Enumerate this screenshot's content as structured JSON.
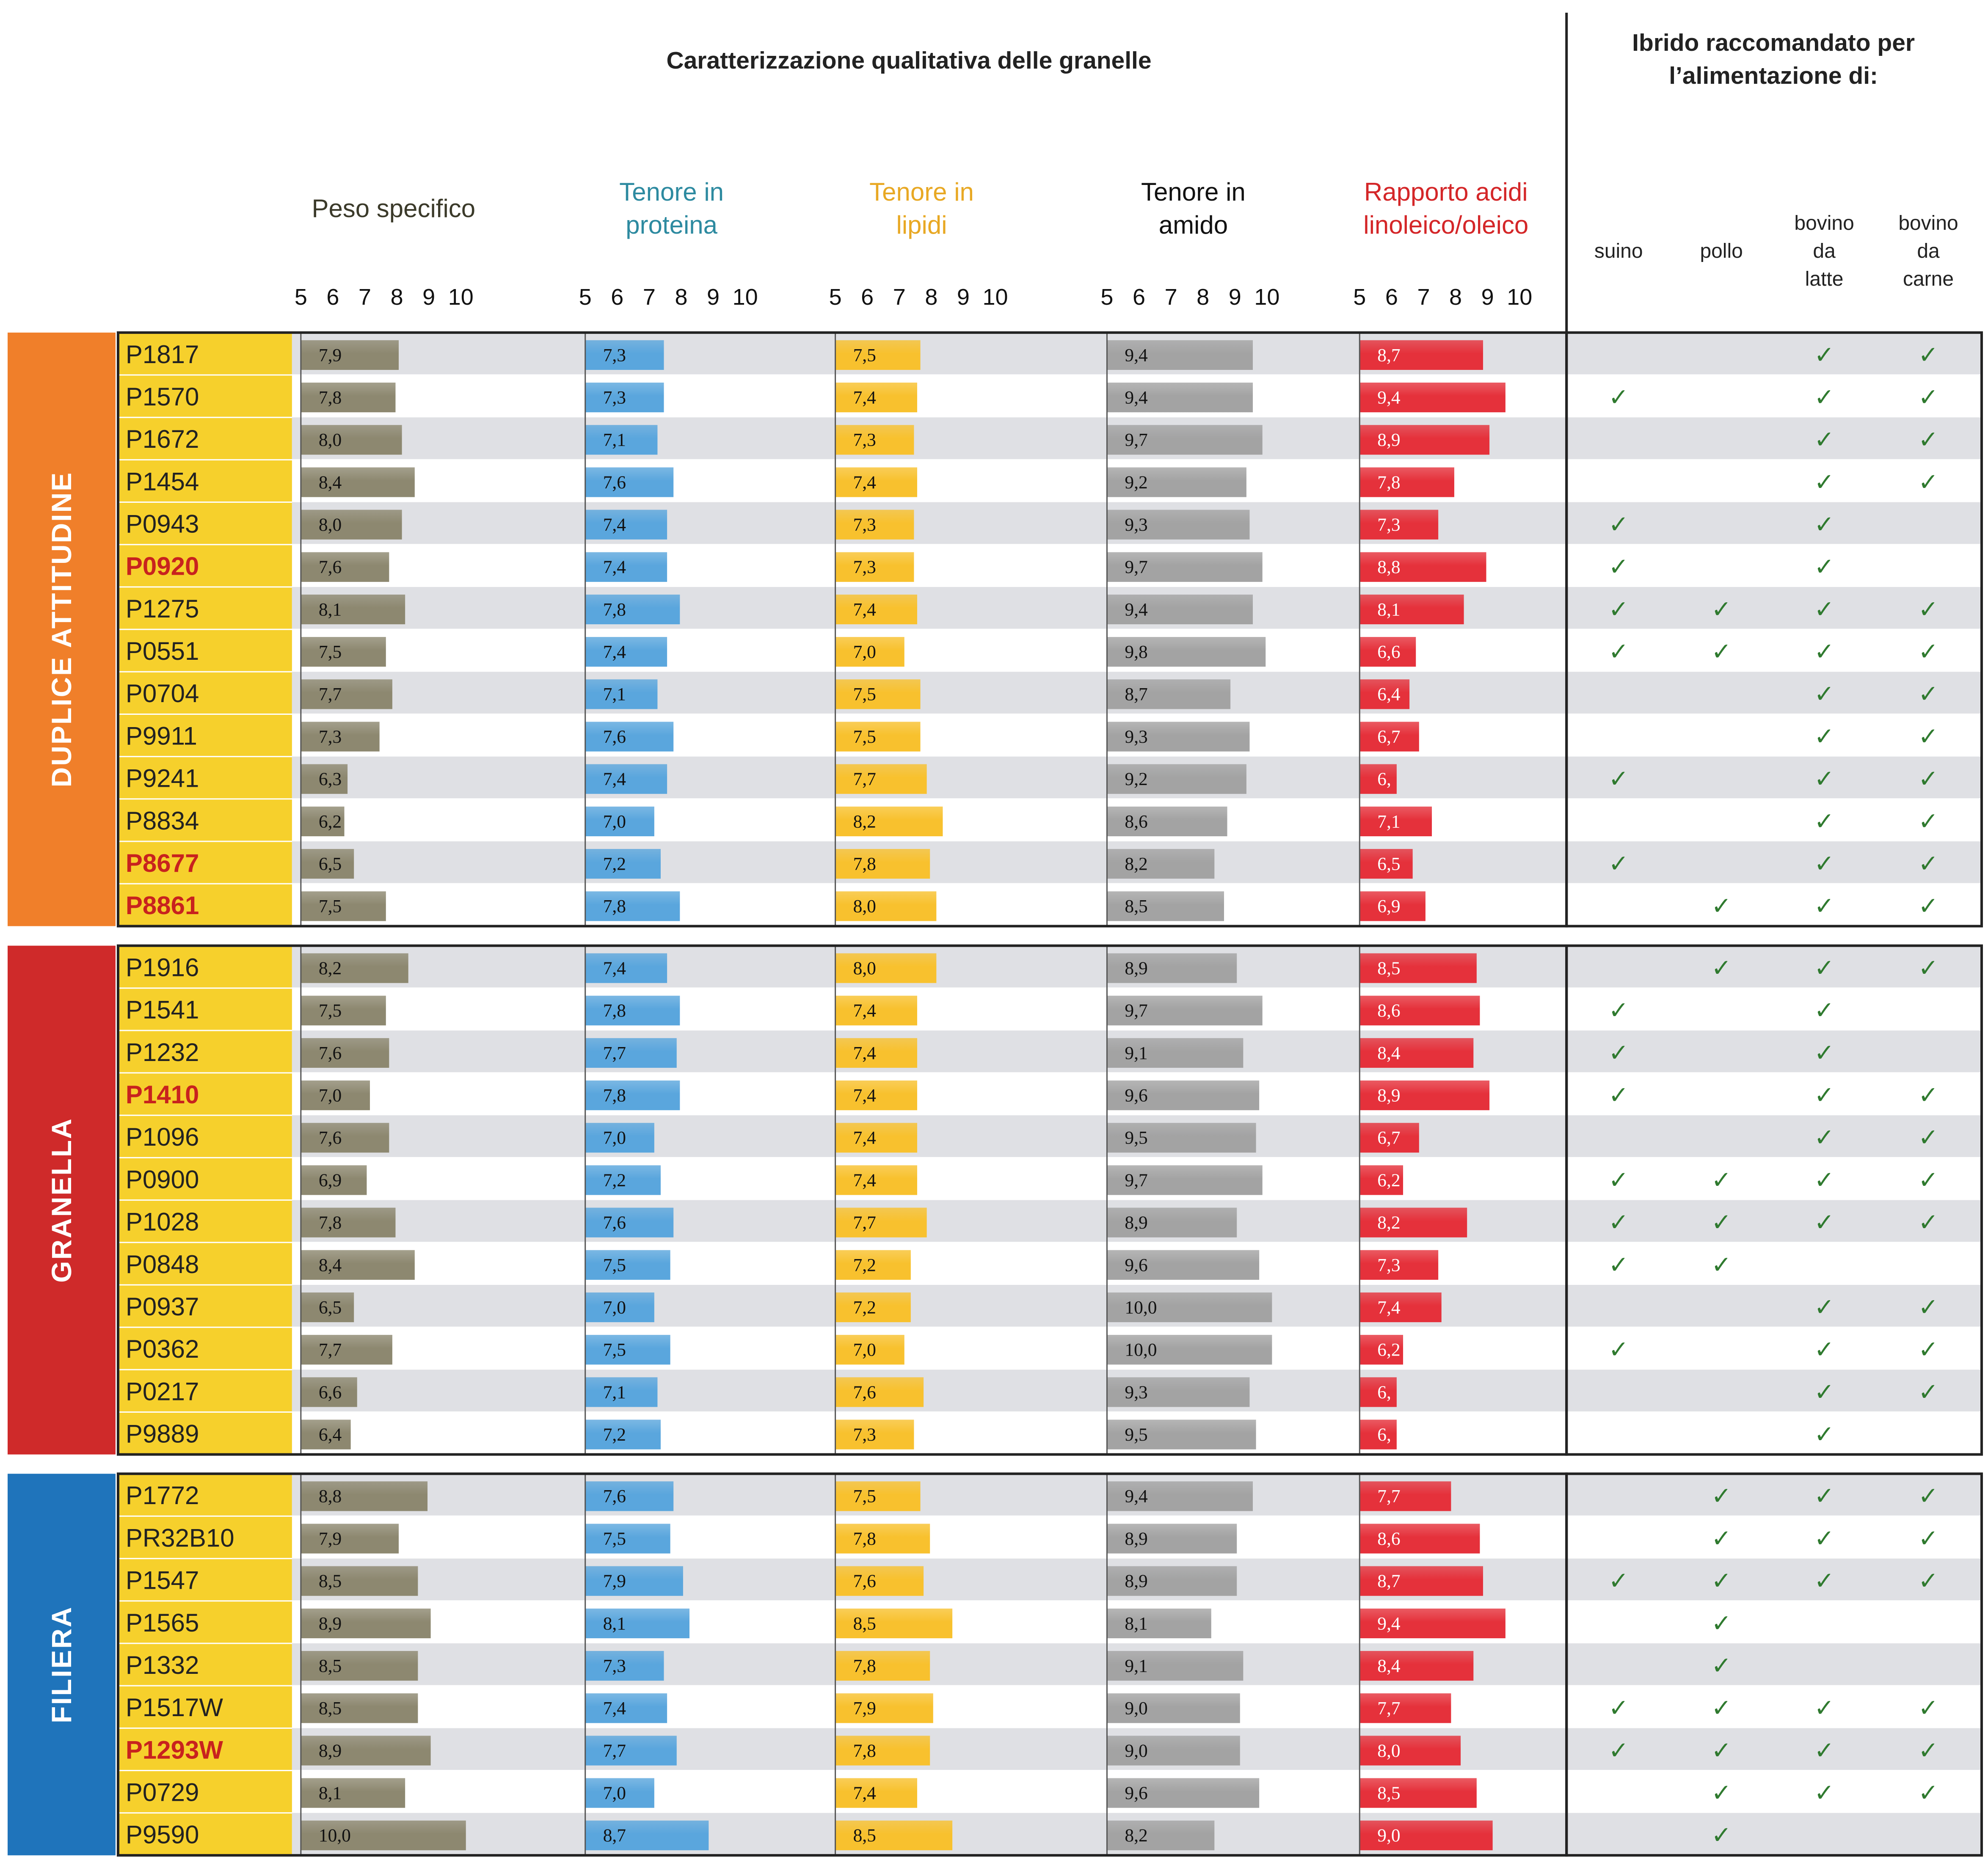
{
  "colors": {
    "peso": "#8d8870",
    "proteina": "#5aa6dd",
    "lipidi": "#f8c12e",
    "amido": "#a3a3a3",
    "rapporto": "#e5313b",
    "peso_label": "#3b3a2a",
    "proteina_label": "#2d8aa0",
    "lipidi_label": "#e8a823",
    "amido_label": "#111111",
    "rapporto_label": "#d42628",
    "name_col_bg": "#f6d02c",
    "highlight_name": "#c8221e",
    "check": "#2f7a2f",
    "stripe": "#dfe0e4"
  },
  "header": {
    "left_title": "Caratterizzazione qualitativa delle granelle",
    "right_title_line1": "Ibrido raccomandato per",
    "right_title_line2": "l’alimentazione di:"
  },
  "metrics": [
    {
      "key": "peso",
      "line1": "Peso specifico",
      "line2": ""
    },
    {
      "key": "proteina",
      "line1": "Tenore in",
      "line2": "proteina"
    },
    {
      "key": "lipidi",
      "line1": "Tenore in",
      "line2": "lipidi"
    },
    {
      "key": "amido",
      "line1": "Tenore in",
      "line2": "amido"
    },
    {
      "key": "rapporto",
      "line1": "Rapporto acidi",
      "line2": "linoleico/oleico"
    }
  ],
  "uses": [
    {
      "key": "suino",
      "lines": [
        "suino"
      ]
    },
    {
      "key": "pollo",
      "lines": [
        "pollo"
      ]
    },
    {
      "key": "latte",
      "lines": [
        "bovino",
        "da",
        "latte"
      ]
    },
    {
      "key": "carne",
      "lines": [
        "bovino",
        "da",
        "carne"
      ]
    }
  ],
  "check_symbol": "✓",
  "chart_data": {
    "type": "bar",
    "orientation": "horizontal",
    "xlim": [
      5,
      10
    ],
    "ticks": [
      "5",
      "6",
      "7",
      "8",
      "9",
      "10"
    ],
    "series_names": [
      "Peso specifico",
      "Tenore in proteina",
      "Tenore in lipidi",
      "Tenore in amido",
      "Rapporto acidi linoleico/oleico"
    ],
    "groups": [
      {
        "label": "DUPLICE ATTITUDINE",
        "color": "#f07f2a",
        "rows": [
          {
            "name": "P1817",
            "hl": false,
            "v": [
              7.9,
              7.3,
              7.5,
              9.4,
              8.7
            ],
            "lbl": [
              "7,9",
              "7,3",
              "7,5",
              "9,4",
              "8,7"
            ],
            "u": [
              false,
              false,
              true,
              true
            ]
          },
          {
            "name": "P1570",
            "hl": false,
            "v": [
              7.8,
              7.3,
              7.4,
              9.4,
              9.4
            ],
            "lbl": [
              "7,8",
              "7,3",
              "7,4",
              "9,4",
              "9,4"
            ],
            "u": [
              true,
              false,
              true,
              true
            ]
          },
          {
            "name": "P1672",
            "hl": false,
            "v": [
              8.0,
              7.1,
              7.3,
              9.7,
              8.9
            ],
            "lbl": [
              "8,0",
              "7,1",
              "7,3",
              "9,7",
              "8,9"
            ],
            "u": [
              false,
              false,
              true,
              true
            ]
          },
          {
            "name": "P1454",
            "hl": false,
            "v": [
              8.4,
              7.6,
              7.4,
              9.2,
              7.8
            ],
            "lbl": [
              "8,4",
              "7,6",
              "7,4",
              "9,2",
              "7,8"
            ],
            "u": [
              false,
              false,
              true,
              true
            ]
          },
          {
            "name": "P0943",
            "hl": false,
            "v": [
              8.0,
              7.4,
              7.3,
              9.3,
              7.3
            ],
            "lbl": [
              "8,0",
              "7,4",
              "7,3",
              "9,3",
              "7,3"
            ],
            "u": [
              true,
              false,
              true,
              false
            ]
          },
          {
            "name": "P0920",
            "hl": true,
            "v": [
              7.6,
              7.4,
              7.3,
              9.7,
              8.8
            ],
            "lbl": [
              "7,6",
              "7,4",
              "7,3",
              "9,7",
              "8,8"
            ],
            "u": [
              true,
              false,
              true,
              false
            ]
          },
          {
            "name": "P1275",
            "hl": false,
            "v": [
              8.1,
              7.8,
              7.4,
              9.4,
              8.1
            ],
            "lbl": [
              "8,1",
              "7,8",
              "7,4",
              "9,4",
              "8,1"
            ],
            "u": [
              true,
              true,
              true,
              true
            ]
          },
          {
            "name": "P0551",
            "hl": false,
            "v": [
              7.5,
              7.4,
              7.0,
              9.8,
              6.6
            ],
            "lbl": [
              "7,5",
              "7,4",
              "7,0",
              "9,8",
              "6,6"
            ],
            "u": [
              true,
              true,
              true,
              true
            ]
          },
          {
            "name": "P0704",
            "hl": false,
            "v": [
              7.7,
              7.1,
              7.5,
              8.7,
              6.4
            ],
            "lbl": [
              "7,7",
              "7,1",
              "7,5",
              "8,7",
              "6,4"
            ],
            "u": [
              false,
              false,
              true,
              true
            ]
          },
          {
            "name": "P9911",
            "hl": false,
            "v": [
              7.3,
              7.6,
              7.5,
              9.3,
              6.7
            ],
            "lbl": [
              "7,3",
              "7,6",
              "7,5",
              "9,3",
              "6,7"
            ],
            "u": [
              false,
              false,
              true,
              true
            ]
          },
          {
            "name": "P9241",
            "hl": false,
            "v": [
              6.3,
              7.4,
              7.7,
              9.2,
              6.0
            ],
            "lbl": [
              "6,3",
              "7,4",
              "7,7",
              "9,2",
              "6,"
            ],
            "u": [
              true,
              false,
              true,
              true
            ]
          },
          {
            "name": "P8834",
            "hl": false,
            "v": [
              6.2,
              7.0,
              8.2,
              8.6,
              7.1
            ],
            "lbl": [
              "6,2",
              "7,0",
              "8,2",
              "8,6",
              "7,1"
            ],
            "u": [
              false,
              false,
              true,
              true
            ]
          },
          {
            "name": "P8677",
            "hl": true,
            "v": [
              6.5,
              7.2,
              7.8,
              8.2,
              6.5
            ],
            "lbl": [
              "6,5",
              "7,2",
              "7,8",
              "8,2",
              "6,5"
            ],
            "u": [
              true,
              false,
              true,
              true
            ]
          },
          {
            "name": "P8861",
            "hl": true,
            "v": [
              7.5,
              7.8,
              8.0,
              8.5,
              6.9
            ],
            "lbl": [
              "7,5",
              "7,8",
              "8,0",
              "8,5",
              "6,9"
            ],
            "u": [
              false,
              true,
              true,
              true
            ]
          }
        ]
      },
      {
        "label": "GRANELLA",
        "color": "#cf2a2a",
        "rows": [
          {
            "name": "P1916",
            "hl": false,
            "v": [
              8.2,
              7.4,
              8.0,
              8.9,
              8.5
            ],
            "lbl": [
              "8,2",
              "7,4",
              "8,0",
              "8,9",
              "8,5"
            ],
            "u": [
              false,
              true,
              true,
              true
            ]
          },
          {
            "name": "P1541",
            "hl": false,
            "v": [
              7.5,
              7.8,
              7.4,
              9.7,
              8.6
            ],
            "lbl": [
              "7,5",
              "7,8",
              "7,4",
              "9,7",
              "8,6"
            ],
            "u": [
              true,
              false,
              true,
              false
            ]
          },
          {
            "name": "P1232",
            "hl": false,
            "v": [
              7.6,
              7.7,
              7.4,
              9.1,
              8.4
            ],
            "lbl": [
              "7,6",
              "7,7",
              "7,4",
              "9,1",
              "8,4"
            ],
            "u": [
              true,
              false,
              true,
              false
            ]
          },
          {
            "name": "P1410",
            "hl": true,
            "v": [
              7.0,
              7.8,
              7.4,
              9.6,
              8.9
            ],
            "lbl": [
              "7,0",
              "7,8",
              "7,4",
              "9,6",
              "8,9"
            ],
            "u": [
              true,
              false,
              true,
              true
            ]
          },
          {
            "name": "P1096",
            "hl": false,
            "v": [
              7.6,
              7.0,
              7.4,
              9.5,
              6.7
            ],
            "lbl": [
              "7,6",
              "7,0",
              "7,4",
              "9,5",
              "6,7"
            ],
            "u": [
              false,
              false,
              true,
              true
            ]
          },
          {
            "name": "P0900",
            "hl": false,
            "v": [
              6.9,
              7.2,
              7.4,
              9.7,
              6.2
            ],
            "lbl": [
              "6,9",
              "7,2",
              "7,4",
              "9,7",
              "6,2"
            ],
            "u": [
              true,
              true,
              true,
              true
            ]
          },
          {
            "name": "P1028",
            "hl": false,
            "v": [
              7.8,
              7.6,
              7.7,
              8.9,
              8.2
            ],
            "lbl": [
              "7,8",
              "7,6",
              "7,7",
              "8,9",
              "8,2"
            ],
            "u": [
              true,
              true,
              true,
              true
            ]
          },
          {
            "name": "P0848",
            "hl": false,
            "v": [
              8.4,
              7.5,
              7.2,
              9.6,
              7.3
            ],
            "lbl": [
              "8,4",
              "7,5",
              "7,2",
              "9,6",
              "7,3"
            ],
            "u": [
              true,
              true,
              false,
              false
            ]
          },
          {
            "name": "P0937",
            "hl": false,
            "v": [
              6.5,
              7.0,
              7.2,
              10.0,
              7.4
            ],
            "lbl": [
              "6,5",
              "7,0",
              "7,2",
              "10,0",
              "7,4"
            ],
            "u": [
              false,
              false,
              true,
              true
            ]
          },
          {
            "name": "P0362",
            "hl": false,
            "v": [
              7.7,
              7.5,
              7.0,
              10.0,
              6.2
            ],
            "lbl": [
              "7,7",
              "7,5",
              "7,0",
              "10,0",
              "6,2"
            ],
            "u": [
              true,
              false,
              true,
              true
            ]
          },
          {
            "name": "P0217",
            "hl": false,
            "v": [
              6.6,
              7.1,
              7.6,
              9.3,
              6.0
            ],
            "lbl": [
              "6,6",
              "7,1",
              "7,6",
              "9,3",
              "6,"
            ],
            "u": [
              false,
              false,
              true,
              true
            ]
          },
          {
            "name": "P9889",
            "hl": false,
            "v": [
              6.4,
              7.2,
              7.3,
              9.5,
              6.0
            ],
            "lbl": [
              "6,4",
              "7,2",
              "7,3",
              "9,5",
              "6,"
            ],
            "u": [
              false,
              false,
              true,
              false
            ]
          }
        ]
      },
      {
        "label": "FILIERA",
        "color": "#1f74bb",
        "rows": [
          {
            "name": "P1772",
            "hl": false,
            "v": [
              8.8,
              7.6,
              7.5,
              9.4,
              7.7
            ],
            "lbl": [
              "8,8",
              "7,6",
              "7,5",
              "9,4",
              "7,7"
            ],
            "u": [
              false,
              true,
              true,
              true
            ]
          },
          {
            "name": "PR32B10",
            "hl": false,
            "v": [
              7.9,
              7.5,
              7.8,
              8.9,
              8.6
            ],
            "lbl": [
              "7,9",
              "7,5",
              "7,8",
              "8,9",
              "8,6"
            ],
            "u": [
              false,
              true,
              true,
              true
            ]
          },
          {
            "name": "P1547",
            "hl": false,
            "v": [
              8.5,
              7.9,
              7.6,
              8.9,
              8.7
            ],
            "lbl": [
              "8,5",
              "7,9",
              "7,6",
              "8,9",
              "8,7"
            ],
            "u": [
              true,
              true,
              true,
              true
            ]
          },
          {
            "name": "P1565",
            "hl": false,
            "v": [
              8.9,
              8.1,
              8.5,
              8.1,
              9.4
            ],
            "lbl": [
              "8,9",
              "8,1",
              "8,5",
              "8,1",
              "9,4"
            ],
            "u": [
              false,
              true,
              false,
              false
            ]
          },
          {
            "name": "P1332",
            "hl": false,
            "v": [
              8.5,
              7.3,
              7.8,
              9.1,
              8.4
            ],
            "lbl": [
              "8,5",
              "7,3",
              "7,8",
              "9,1",
              "8,4"
            ],
            "u": [
              false,
              true,
              false,
              false
            ]
          },
          {
            "name": "P1517W",
            "hl": false,
            "v": [
              8.5,
              7.4,
              7.9,
              9.0,
              7.7
            ],
            "lbl": [
              "8,5",
              "7,4",
              "7,9",
              "9,0",
              "7,7"
            ],
            "u": [
              true,
              true,
              true,
              true
            ]
          },
          {
            "name": "P1293W",
            "hl": true,
            "v": [
              8.9,
              7.7,
              7.8,
              9.0,
              8.0
            ],
            "lbl": [
              "8,9",
              "7,7",
              "7,8",
              "9,0",
              "8,0"
            ],
            "u": [
              true,
              true,
              true,
              true
            ]
          },
          {
            "name": "P0729",
            "hl": false,
            "v": [
              8.1,
              7.0,
              7.4,
              9.6,
              8.5
            ],
            "lbl": [
              "8,1",
              "7,0",
              "7,4",
              "9,6",
              "8,5"
            ],
            "u": [
              false,
              true,
              true,
              true
            ]
          },
          {
            "name": "P9590",
            "hl": false,
            "v": [
              10.0,
              8.7,
              8.5,
              8.2,
              9.0
            ],
            "lbl": [
              "10,0",
              "8,7",
              "8,5",
              "8,2",
              "9,0"
            ],
            "u": [
              false,
              true,
              false,
              false
            ]
          }
        ]
      }
    ]
  }
}
